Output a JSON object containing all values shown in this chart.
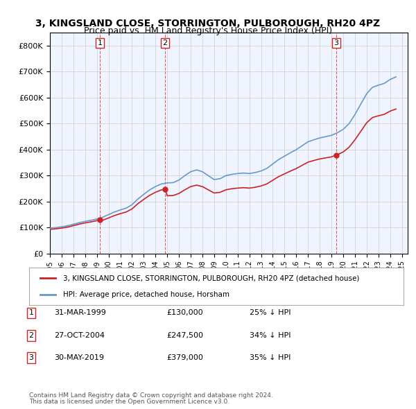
{
  "title": "3, KINGSLAND CLOSE, STORRINGTON, PULBOROUGH, RH20 4PZ",
  "subtitle": "Price paid vs. HM Land Registry's House Price Index (HPI)",
  "legend_property": "3, KINGSLAND CLOSE, STORRINGTON, PULBOROUGH, RH20 4PZ (detached house)",
  "legend_hpi": "HPI: Average price, detached house, Horsham",
  "footer1": "Contains HM Land Registry data © Crown copyright and database right 2024.",
  "footer2": "This data is licensed under the Open Government Licence v3.0.",
  "transactions": [
    {
      "num": 1,
      "date": "31-MAR-1999",
      "price": "£130,000",
      "hpi": "25% ↓ HPI",
      "year": 1999.25
    },
    {
      "num": 2,
      "date": "27-OCT-2004",
      "price": "£247,500",
      "hpi": "34% ↓ HPI",
      "year": 2004.82
    },
    {
      "num": 3,
      "date": "30-MAY-2019",
      "price": "£379,000",
      "hpi": "35% ↓ HPI",
      "year": 2019.41
    }
  ],
  "transaction_values": [
    130000,
    247500,
    379000
  ],
  "transaction_years": [
    1999.25,
    2004.82,
    2019.41
  ],
  "hpi_color": "#6699cc",
  "price_color": "#cc2222",
  "background_color": "#f0f4ff",
  "ylim": [
    0,
    850000
  ],
  "xlim_start": 1995.0,
  "xlim_end": 2025.5
}
